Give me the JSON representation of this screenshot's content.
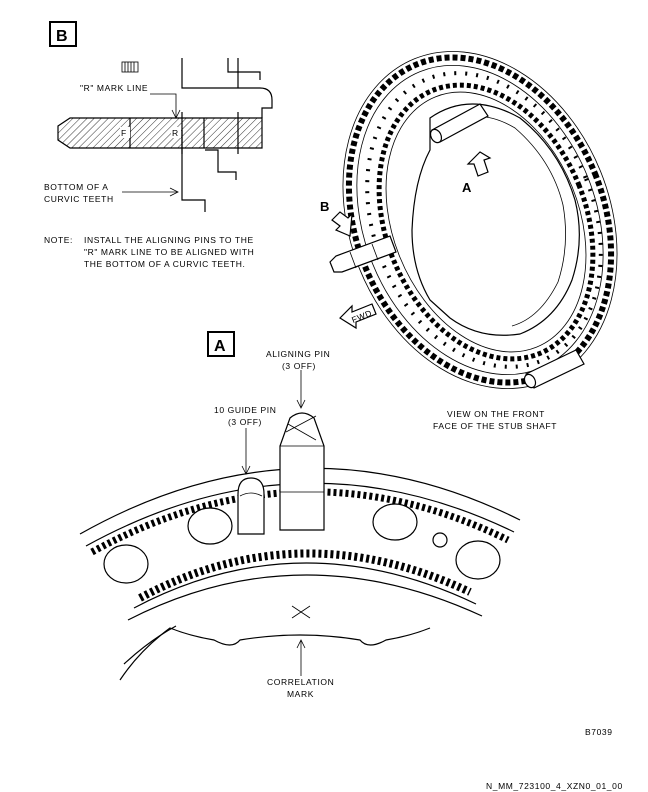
{
  "detail_b": {
    "box_label": "B",
    "r_mark_line_label": "\"R\" MARK LINE",
    "bottom_label_line1": "BOTTOM OF A",
    "bottom_label_line2": "CURVIC TEETH",
    "pin_mark_f": "F",
    "pin_mark_r": "R"
  },
  "note": {
    "prefix": "NOTE:",
    "line1": "INSTALL THE ALIGNING PINS TO THE",
    "line2": "\"R\" MARK LINE TO BE ALIGNED WITH",
    "line3": "THE BOTTOM OF A CURVIC TEETH."
  },
  "view_main": {
    "arrow_b_label": "B",
    "arrow_a_label": "A",
    "fwd_label": "FWD",
    "view_line1": "VIEW ON THE FRONT",
    "view_line2": "FACE OF THE STUB SHAFT"
  },
  "detail_a": {
    "box_label": "A",
    "aligning_pin_line1": "ALIGNING PIN",
    "aligning_pin_line2": "(3 OFF)",
    "guide_pin_line1": "10 GUIDE PIN",
    "guide_pin_line2": "(3 OFF)",
    "correlation_line1": "CORRELATION",
    "correlation_line2": "MARK"
  },
  "footer": {
    "figure_code": "B7039",
    "document_ref": "N_MM_723100_4_XZN0_01_00"
  }
}
